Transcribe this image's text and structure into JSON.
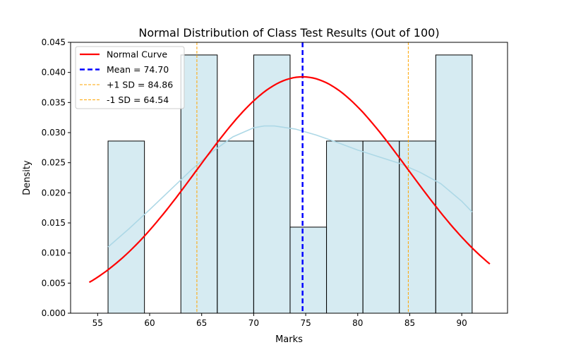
{
  "chart_data": {
    "type": "histogram",
    "title": "Normal Distribution of Class Test Results (Out of 100)",
    "xlabel": "Marks",
    "ylabel": "Density",
    "xlim": [
      52.4,
      94.4
    ],
    "ylim": [
      0,
      0.045
    ],
    "xticks": [
      55,
      60,
      65,
      70,
      75,
      80,
      85,
      90
    ],
    "yticks": [
      0.0,
      0.005,
      0.01,
      0.015,
      0.02,
      0.025,
      0.03,
      0.035,
      0.04,
      0.045
    ],
    "bins": [
      {
        "x0": 56.0,
        "x1": 59.5,
        "density": 0.0286
      },
      {
        "x0": 59.5,
        "x1": 63.0,
        "density": 0.0
      },
      {
        "x0": 63.0,
        "x1": 66.5,
        "density": 0.0429
      },
      {
        "x0": 66.5,
        "x1": 70.0,
        "density": 0.0286
      },
      {
        "x0": 70.0,
        "x1": 73.5,
        "density": 0.0429
      },
      {
        "x0": 73.5,
        "x1": 77.0,
        "density": 0.0143
      },
      {
        "x0": 77.0,
        "x1": 80.5,
        "density": 0.0286
      },
      {
        "x0": 80.5,
        "x1": 84.0,
        "density": 0.0286
      },
      {
        "x0": 84.0,
        "x1": 87.5,
        "density": 0.0286
      },
      {
        "x0": 87.5,
        "x1": 91.0,
        "density": 0.0429
      }
    ],
    "normal_curve": {
      "mean": 74.7,
      "sd": 10.16,
      "x_range": [
        54.2,
        92.7
      ]
    },
    "kde": {
      "x": [
        56,
        58,
        60,
        62,
        64,
        66,
        68,
        70,
        71,
        72,
        74,
        76,
        78,
        80,
        82,
        84,
        86,
        88,
        90,
        91
      ],
      "y": [
        0.011,
        0.014,
        0.0172,
        0.0205,
        0.0238,
        0.0268,
        0.0293,
        0.0308,
        0.0311,
        0.0311,
        0.0306,
        0.0296,
        0.0284,
        0.0271,
        0.026,
        0.0249,
        0.0234,
        0.0215,
        0.0186,
        0.0168
      ]
    },
    "vlines": [
      {
        "x": 74.7,
        "label": "Mean = 74.70",
        "color": "#0000ff",
        "style": "dashed-thick"
      },
      {
        "x": 84.86,
        "label": "+1 SD = 84.86",
        "color": "#ffa500",
        "style": "dashed-thin"
      },
      {
        "x": 64.54,
        "label": "-1 SD = 64.54",
        "color": "#ffa500",
        "style": "dashed-thin"
      }
    ],
    "legend": {
      "placement": "top-left",
      "entries": [
        {
          "label": "Normal Curve",
          "color": "#ff0000",
          "style": "solid"
        },
        {
          "label": "Mean = 74.70",
          "color": "#0000ff",
          "style": "dashed-thick"
        },
        {
          "label": "+1 SD = 84.86",
          "color": "#ffa500",
          "style": "dashed-thin"
        },
        {
          "label": "-1 SD = 64.54",
          "color": "#ffa500",
          "style": "dashed-thin"
        }
      ]
    },
    "colors": {
      "bar_fill": "#add8e6",
      "bar_edge": "#000000",
      "kde": "#add8e6",
      "normal": "#ff0000"
    }
  }
}
